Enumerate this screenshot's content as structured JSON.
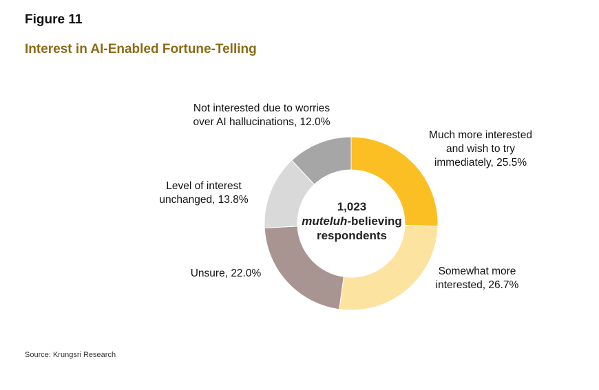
{
  "figure_label": "Figure 11",
  "title": "Interest in AI-Enabled Fortune-Telling",
  "source": "Source: Krungsri Research",
  "center_text": {
    "line1": "1,023",
    "line2_italic": "muteluh",
    "line2_rest": "-believing",
    "line3": "respondents"
  },
  "colors": {
    "title": "#8a6a14",
    "much_more": "#fbbf24",
    "somewhat_more": "#fde3a0",
    "unsure": "#a89490",
    "unchanged": "#d9d9d9",
    "not_interested": "#a6a6a6"
  },
  "labels": {
    "much_more": [
      "Much more interested",
      "and wish to try",
      "immediately, 25.5%"
    ],
    "somewhat_more": [
      "Somewhat more",
      "interested, 26.7%"
    ],
    "unsure": [
      "Unsure, 22.0%"
    ],
    "unchanged": [
      "Level of interest",
      "unchanged, 13.8%"
    ],
    "not_interested": [
      "Not interested due to worries",
      "over AI hallucinations, 12.0%"
    ]
  },
  "chart_data": {
    "type": "pie",
    "donut": true,
    "total_respondents": 1023,
    "slices": [
      {
        "key": "much_more",
        "name": "Much more interested and wish to try immediately",
        "value": 25.5,
        "color": "#fbbf24"
      },
      {
        "key": "somewhat_more",
        "name": "Somewhat more interested",
        "value": 26.7,
        "color": "#fde3a0"
      },
      {
        "key": "unsure",
        "name": "Unsure",
        "value": 22.0,
        "color": "#a89490"
      },
      {
        "key": "unchanged",
        "name": "Level of interest unchanged",
        "value": 13.8,
        "color": "#d9d9d9"
      },
      {
        "key": "not_interested",
        "name": "Not interested due to worries over AI hallucinations",
        "value": 12.0,
        "color": "#a6a6a6"
      }
    ]
  }
}
